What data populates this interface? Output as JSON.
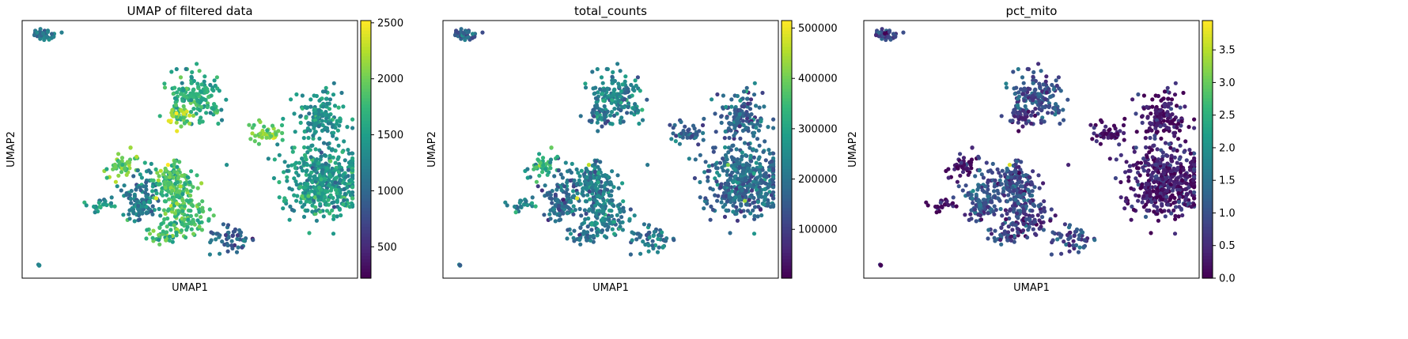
{
  "chart_data": [
    {
      "type": "scatter",
      "title": "UMAP of filtered data",
      "xlabel": "UMAP1",
      "ylabel": "UMAP2",
      "colorbar": {
        "colormap": "viridis",
        "range": [
          220,
          2520
        ],
        "ticks": [
          500,
          1000,
          1500,
          2000,
          2500
        ]
      },
      "grid": false
    },
    {
      "type": "scatter",
      "title": "total_counts",
      "xlabel": "UMAP1",
      "ylabel": "UMAP2",
      "colorbar": {
        "colormap": "viridis",
        "range": [
          3000,
          515000
        ],
        "ticks": [
          100000,
          200000,
          300000,
          400000,
          500000
        ]
      },
      "grid": false
    },
    {
      "type": "scatter",
      "title": "pct_mito",
      "xlabel": "UMAP1",
      "ylabel": "UMAP2",
      "colorbar": {
        "colormap": "viridis",
        "range": [
          0.0,
          3.95
        ],
        "ticks": [
          "0.0",
          "0.5",
          "1.0",
          "1.5",
          "2.0",
          "2.5",
          "3.0",
          "3.5"
        ]
      },
      "grid": false
    }
  ],
  "colors": {
    "viridis": [
      "#440154",
      "#482878",
      "#3e4989",
      "#31688e",
      "#26828e",
      "#1f9e89",
      "#35b779",
      "#6ece58",
      "#b5de2b",
      "#fde725"
    ]
  }
}
